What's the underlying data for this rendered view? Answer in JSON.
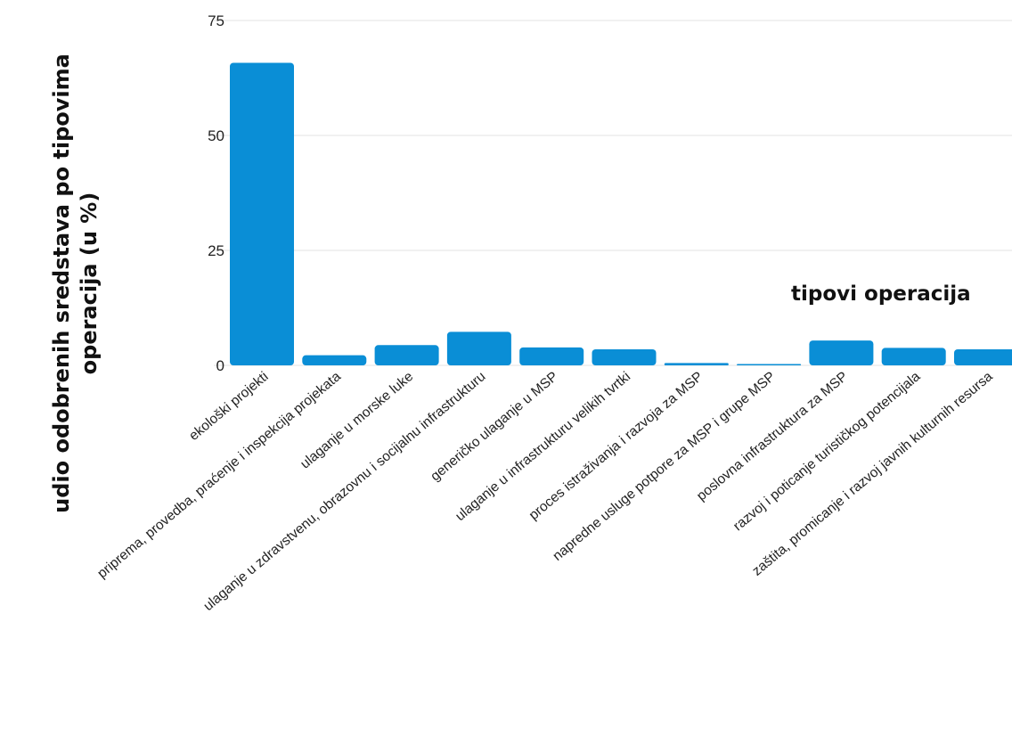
{
  "chart_data": {
    "type": "bar",
    "xlabel": "tipovi operacija",
    "ylabel": "udio odobrenih sredstava po tipovima operacija (u %)",
    "ylim": [
      0,
      75
    ],
    "yticks": [
      0,
      25,
      50,
      75
    ],
    "grid": true,
    "categories": [
      "ekološki projekti",
      "priprema, provedba, praćenje i inspekcija projekata",
      "ulaganje u morske luke",
      "ulaganje u zdravstvenu, obrazovnu i socijalnu infrastrukturu",
      "generičko ulaganje u MSP",
      "ulaganje u infrastrukturu velikih tvrtki",
      "proces istraživanja i razvoja za MSP",
      "napredne usluge potpore za MSP i grupe MSP",
      "poslovna infrastruktura za MSP",
      "razvoj i poticanje turističkog potencijala",
      "zaštita, promicanje i razvoj javnih kulturnih resursa"
    ],
    "values": [
      65.8,
      2.2,
      4.4,
      7.3,
      3.9,
      3.5,
      0.5,
      0.2,
      5.4,
      3.8,
      3.5
    ],
    "colors": {
      "bar": "#0a8ed6",
      "grid": "#e3e3e3",
      "tick_text": "#222222"
    }
  }
}
